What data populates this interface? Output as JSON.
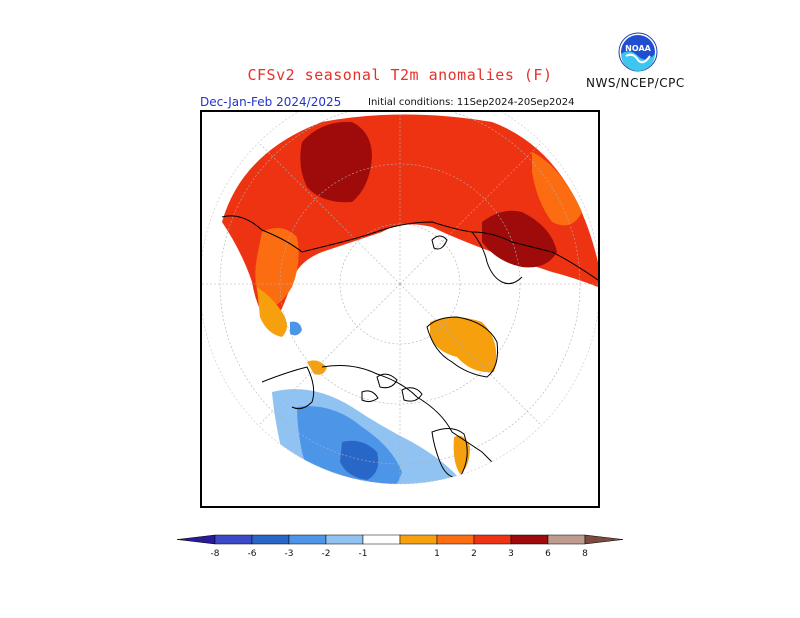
{
  "header": {
    "title": "CFSv2 seasonal T2m anomalies (F)",
    "organization": "NWS/NCEP/CPC",
    "logo_text": "NOAA",
    "period": "Dec-Jan-Feb 2024/2025",
    "initial_conditions": "Initial conditions: 11Sep2024-20Sep2024"
  },
  "map": {
    "projection": "north polar stereographic",
    "variable": "T2m anomalies",
    "units": "F"
  },
  "legend": {
    "bins": [
      {
        "range": "< -8",
        "color": "#2a1a9a"
      },
      {
        "range": "-8 to -6",
        "color": "#3c49c9"
      },
      {
        "range": "-6 to -3",
        "color": "#2866c8"
      },
      {
        "range": "-3 to -2",
        "color": "#4d95e6"
      },
      {
        "range": "-2 to -1",
        "color": "#90c2f2"
      },
      {
        "range": "-1 to 1",
        "color": "#ffffff"
      },
      {
        "range": "1 to 2",
        "color": "#f6a00d"
      },
      {
        "range": "2 to 3",
        "color": "#fc6d12"
      },
      {
        "range": "3 to 6",
        "color": "#ee3312"
      },
      {
        "range": "6 to 8",
        "color": "#9f0b0b"
      },
      {
        "range": "8 to ...",
        "color": "#bf9a8e"
      },
      {
        "range": "> 8",
        "color": "#7b4b3f"
      }
    ],
    "tick_labels": [
      "-8",
      "-6",
      "-3",
      "-2",
      "-1",
      "1",
      "2",
      "3",
      "6",
      "8"
    ]
  }
}
